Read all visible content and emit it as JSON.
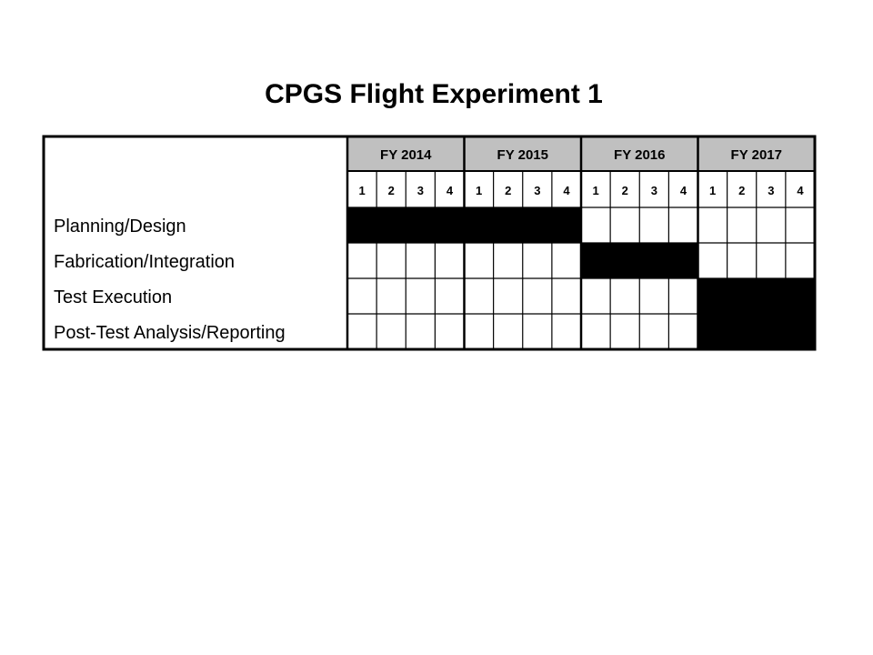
{
  "title": "CPGS Flight Experiment 1",
  "chart_data": {
    "type": "gantt",
    "title": "CPGS Flight Experiment 1",
    "years": [
      "FY 2014",
      "FY 2015",
      "FY 2016",
      "FY 2017"
    ],
    "quarters": [
      "1",
      "2",
      "3",
      "4"
    ],
    "tasks": [
      {
        "name": "Planning/Design",
        "start": "FY 2014 Q1",
        "end": "FY 2015 Q4",
        "start_index": 0,
        "end_index": 7
      },
      {
        "name": "Fabrication/Integration",
        "start": "FY 2016 Q1",
        "end": "FY 2016 Q4",
        "start_index": 8,
        "end_index": 11
      },
      {
        "name": "Test Execution",
        "start": "FY 2017 Q1",
        "end": "FY 2017 Q4",
        "start_index": 12,
        "end_index": 15
      },
      {
        "name": "Post-Test Analysis/Reporting",
        "start": "FY 2017 Q1",
        "end": "FY 2017 Q4",
        "start_index": 12,
        "end_index": 15
      }
    ],
    "colors": {
      "year_header": "#c0c0c0",
      "bar": "#000000",
      "grid": "#000000",
      "background": "#ffffff"
    }
  }
}
